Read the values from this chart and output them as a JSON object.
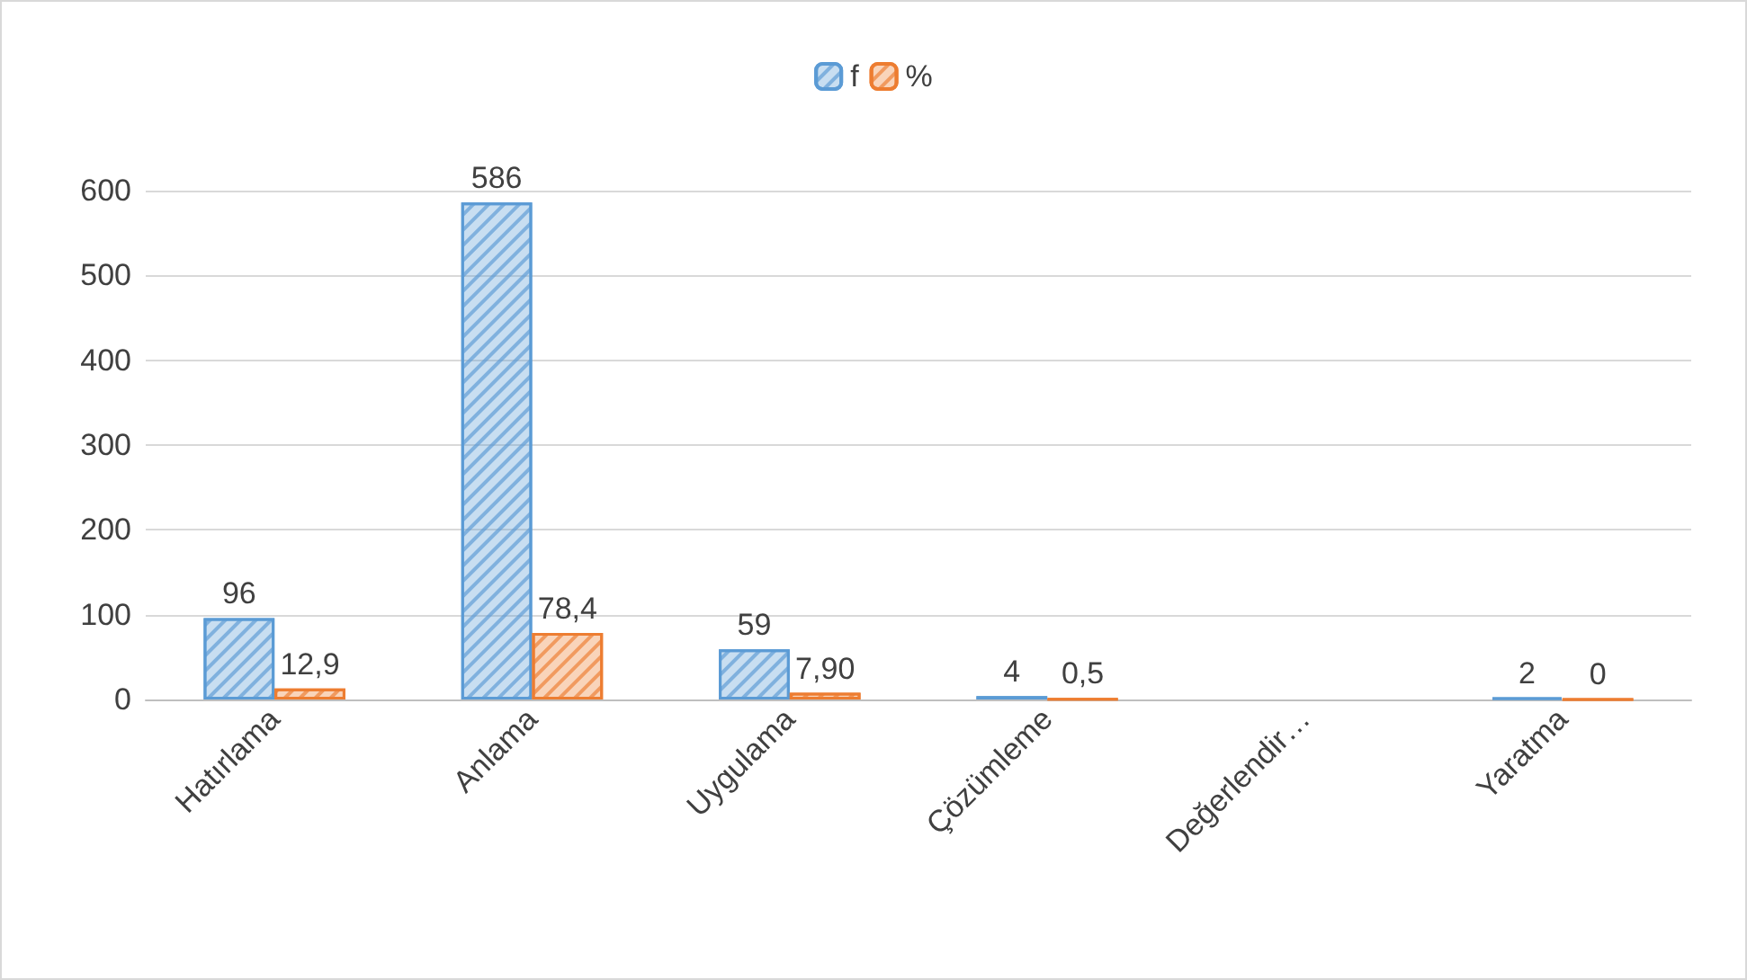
{
  "chart_data": {
    "type": "bar",
    "categories": [
      "Hatırlama",
      "Anlama",
      "Uygulama",
      "Çözümleme",
      "Değerlendir…",
      "Yaratma"
    ],
    "series": [
      {
        "name": "f",
        "color": "#5b9bd5",
        "values": [
          96,
          586,
          59,
          4,
          null,
          2
        ],
        "value_labels": [
          "96",
          "586",
          "59",
          "4",
          null,
          "2"
        ]
      },
      {
        "name": "%",
        "color": "#ed7d31",
        "values": [
          12.9,
          78.4,
          7.9,
          0.5,
          null,
          0
        ],
        "value_labels": [
          "12,9",
          "78,4",
          "7,90",
          "0,5",
          null,
          "0"
        ]
      }
    ],
    "ylim": [
      0,
      600
    ],
    "yticks": [
      0,
      100,
      200,
      300,
      400,
      500,
      600
    ],
    "grid": "y",
    "legend": "top"
  }
}
